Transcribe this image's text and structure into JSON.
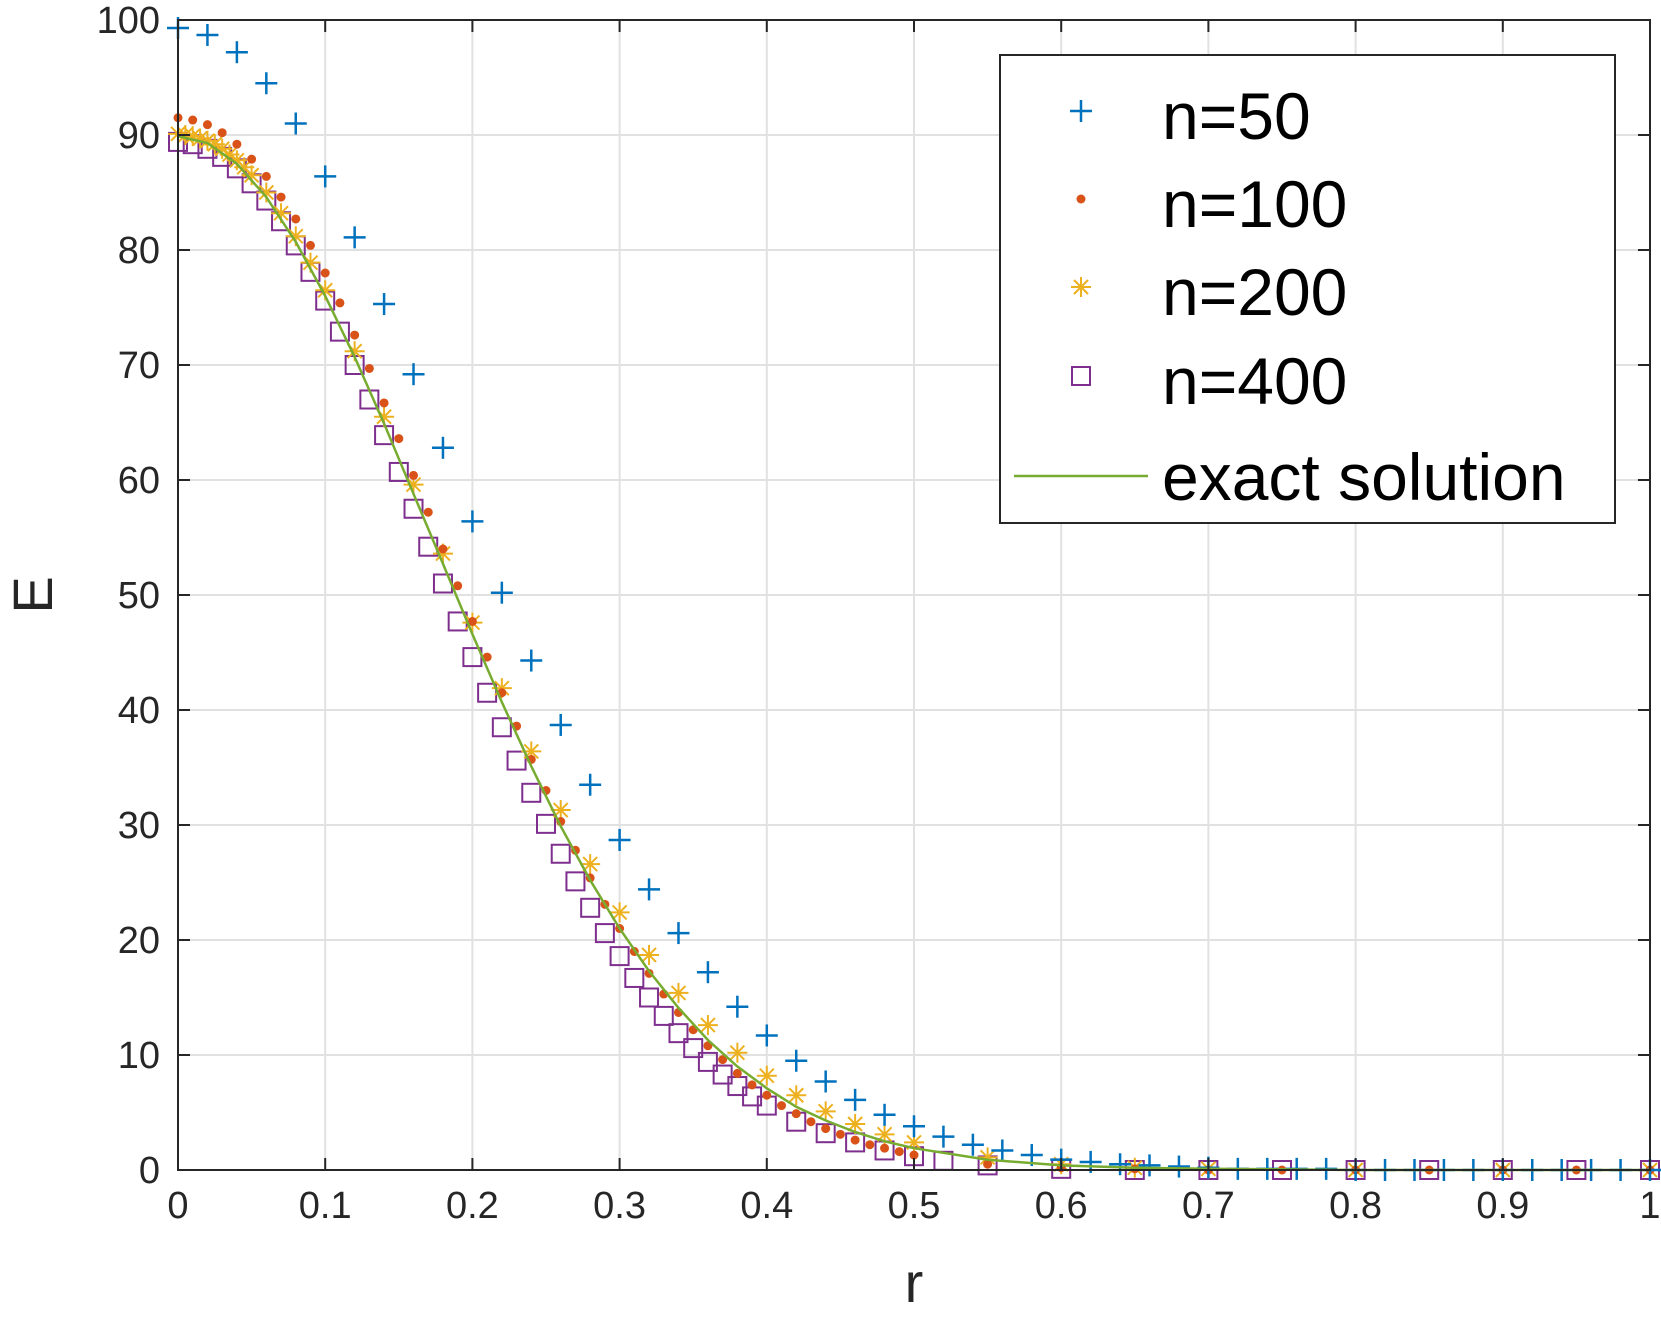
{
  "chart_data": {
    "type": "scatter",
    "title": "",
    "xlabel": "r",
    "ylabel": "E",
    "xlim": [
      0,
      1
    ],
    "ylim": [
      0,
      100
    ],
    "xticks": [
      "0",
      "0.1",
      "0.2",
      "0.3",
      "0.4",
      "0.5",
      "0.6",
      "0.7",
      "0.8",
      "0.9",
      "1"
    ],
    "yticks": [
      "0",
      "10",
      "20",
      "30",
      "40",
      "50",
      "60",
      "70",
      "80",
      "90",
      "100"
    ],
    "grid": true,
    "legend_position": "top-right",
    "series": [
      {
        "name": "n=50",
        "marker": "plus",
        "color": "#0072BD",
        "x": [
          0,
          0.02,
          0.04,
          0.06,
          0.08,
          0.1,
          0.12,
          0.14,
          0.16,
          0.18,
          0.2,
          0.22,
          0.24,
          0.26,
          0.28,
          0.3,
          0.32,
          0.34,
          0.36,
          0.38,
          0.4,
          0.42,
          0.44,
          0.46,
          0.48,
          0.5,
          0.52,
          0.54,
          0.56,
          0.58,
          0.6,
          0.62,
          0.64,
          0.66,
          0.68,
          0.7,
          0.72,
          0.74,
          0.76,
          0.78,
          0.8,
          0.82,
          0.84,
          0.86,
          0.88,
          0.9,
          0.92,
          0.94,
          0.96,
          0.98,
          1.0
        ],
        "y": [
          99.3,
          98.7,
          97.2,
          94.5,
          91.0,
          86.4,
          81.1,
          75.3,
          69.2,
          62.8,
          56.4,
          50.2,
          44.3,
          38.7,
          33.5,
          28.7,
          24.4,
          20.6,
          17.2,
          14.2,
          11.7,
          9.5,
          7.7,
          6.1,
          4.8,
          3.8,
          2.9,
          2.2,
          1.7,
          1.3,
          0.9,
          0.7,
          0.5,
          0.4,
          0.3,
          0.2,
          0.1,
          0.1,
          0.1,
          0.1,
          0.0,
          0.0,
          0.0,
          0.0,
          0.0,
          0.0,
          0.0,
          0.0,
          0.0,
          0.0,
          0.0
        ]
      },
      {
        "name": "n=100",
        "marker": "dot",
        "color": "#D95319",
        "x": [
          0,
          0.01,
          0.02,
          0.03,
          0.04,
          0.05,
          0.06,
          0.07,
          0.08,
          0.09,
          0.1,
          0.11,
          0.12,
          0.13,
          0.14,
          0.15,
          0.16,
          0.17,
          0.18,
          0.19,
          0.2,
          0.21,
          0.22,
          0.23,
          0.24,
          0.25,
          0.26,
          0.27,
          0.28,
          0.29,
          0.3,
          0.31,
          0.32,
          0.33,
          0.34,
          0.35,
          0.36,
          0.37,
          0.38,
          0.39,
          0.4,
          0.41,
          0.42,
          0.43,
          0.44,
          0.45,
          0.46,
          0.47,
          0.48,
          0.49,
          0.5,
          0.55,
          0.6,
          0.65,
          0.7,
          0.75,
          0.8,
          0.85,
          0.9,
          0.95,
          1.0
        ],
        "y": [
          91.5,
          91.3,
          90.9,
          90.2,
          89.2,
          87.9,
          86.4,
          84.6,
          82.7,
          80.4,
          78.0,
          75.4,
          72.6,
          69.7,
          66.7,
          63.6,
          60.4,
          57.2,
          54.0,
          50.8,
          47.7,
          44.6,
          41.5,
          38.6,
          35.7,
          33.0,
          30.3,
          27.8,
          25.4,
          23.1,
          21.0,
          19.0,
          17.1,
          15.3,
          13.7,
          12.2,
          10.8,
          9.6,
          8.4,
          7.4,
          6.5,
          5.6,
          4.9,
          4.2,
          3.6,
          3.1,
          2.6,
          2.2,
          1.9,
          1.6,
          1.3,
          0.5,
          0.2,
          0.1,
          0.0,
          0.0,
          0.0,
          0.0,
          0.0,
          0.0,
          0.0
        ]
      },
      {
        "name": "n=200",
        "marker": "asterisk",
        "color": "#EDB120",
        "x": [
          0,
          0.005,
          0.01,
          0.015,
          0.02,
          0.025,
          0.03,
          0.035,
          0.04,
          0.045,
          0.05,
          0.06,
          0.07,
          0.08,
          0.09,
          0.1,
          0.12,
          0.14,
          0.16,
          0.18,
          0.2,
          0.22,
          0.24,
          0.26,
          0.28,
          0.3,
          0.32,
          0.34,
          0.36,
          0.38,
          0.4,
          0.42,
          0.44,
          0.46,
          0.48,
          0.5,
          0.55,
          0.6,
          0.65,
          0.7,
          0.8,
          0.9,
          1.0
        ],
        "y": [
          90.1,
          90.0,
          89.9,
          89.7,
          89.5,
          89.2,
          88.8,
          88.3,
          87.8,
          87.2,
          86.5,
          85.0,
          83.2,
          81.2,
          78.9,
          76.5,
          71.2,
          65.5,
          59.6,
          53.6,
          47.6,
          41.9,
          36.4,
          31.3,
          26.6,
          22.4,
          18.7,
          15.4,
          12.6,
          10.2,
          8.2,
          6.5,
          5.1,
          4.0,
          3.1,
          2.4,
          1.1,
          0.5,
          0.2,
          0.1,
          0.0,
          0.0,
          0.0
        ]
      },
      {
        "name": "n=400",
        "marker": "square",
        "color": "#7E2F8E",
        "x": [
          0,
          0.01,
          0.02,
          0.03,
          0.04,
          0.05,
          0.06,
          0.07,
          0.08,
          0.09,
          0.1,
          0.11,
          0.12,
          0.13,
          0.14,
          0.15,
          0.16,
          0.17,
          0.18,
          0.19,
          0.2,
          0.21,
          0.22,
          0.23,
          0.24,
          0.25,
          0.26,
          0.27,
          0.28,
          0.29,
          0.3,
          0.31,
          0.32,
          0.33,
          0.34,
          0.35,
          0.36,
          0.37,
          0.38,
          0.39,
          0.4,
          0.42,
          0.44,
          0.46,
          0.48,
          0.5,
          0.52,
          0.55,
          0.6,
          0.65,
          0.7,
          0.75,
          0.8,
          0.85,
          0.9,
          0.95,
          1.0
        ],
        "y": [
          89.4,
          89.2,
          88.8,
          88.1,
          87.1,
          85.8,
          84.3,
          82.5,
          80.4,
          78.1,
          75.6,
          72.9,
          70.0,
          67.0,
          63.9,
          60.7,
          57.5,
          54.2,
          51.0,
          47.7,
          44.6,
          41.5,
          38.5,
          35.6,
          32.8,
          30.1,
          27.5,
          25.1,
          22.8,
          20.6,
          18.6,
          16.7,
          15.0,
          13.4,
          11.9,
          10.6,
          9.4,
          8.3,
          7.3,
          6.4,
          5.6,
          4.2,
          3.2,
          2.4,
          1.7,
          1.2,
          0.8,
          0.4,
          0.1,
          0.0,
          0.0,
          0.0,
          0.0,
          0.0,
          0.0,
          0.0,
          0.0
        ]
      },
      {
        "name": "exact solution",
        "marker": "line",
        "color": "#77AC30",
        "x": [
          0,
          0.02,
          0.04,
          0.06,
          0.08,
          0.1,
          0.12,
          0.14,
          0.16,
          0.18,
          0.2,
          0.22,
          0.24,
          0.26,
          0.28,
          0.3,
          0.32,
          0.34,
          0.36,
          0.38,
          0.4,
          0.42,
          0.44,
          0.46,
          0.48,
          0.5,
          0.55,
          0.6,
          0.65,
          0.7,
          0.8,
          0.9,
          1.0
        ],
        "y": [
          89.9,
          89.3,
          87.5,
          84.6,
          80.7,
          76.0,
          70.7,
          64.9,
          58.8,
          52.7,
          46.6,
          40.7,
          35.1,
          29.9,
          25.2,
          21.0,
          17.3,
          14.1,
          11.3,
          9.0,
          7.1,
          5.5,
          4.3,
          3.3,
          2.5,
          1.9,
          0.9,
          0.4,
          0.2,
          0.1,
          0.0,
          0.0,
          0.0
        ]
      }
    ]
  }
}
